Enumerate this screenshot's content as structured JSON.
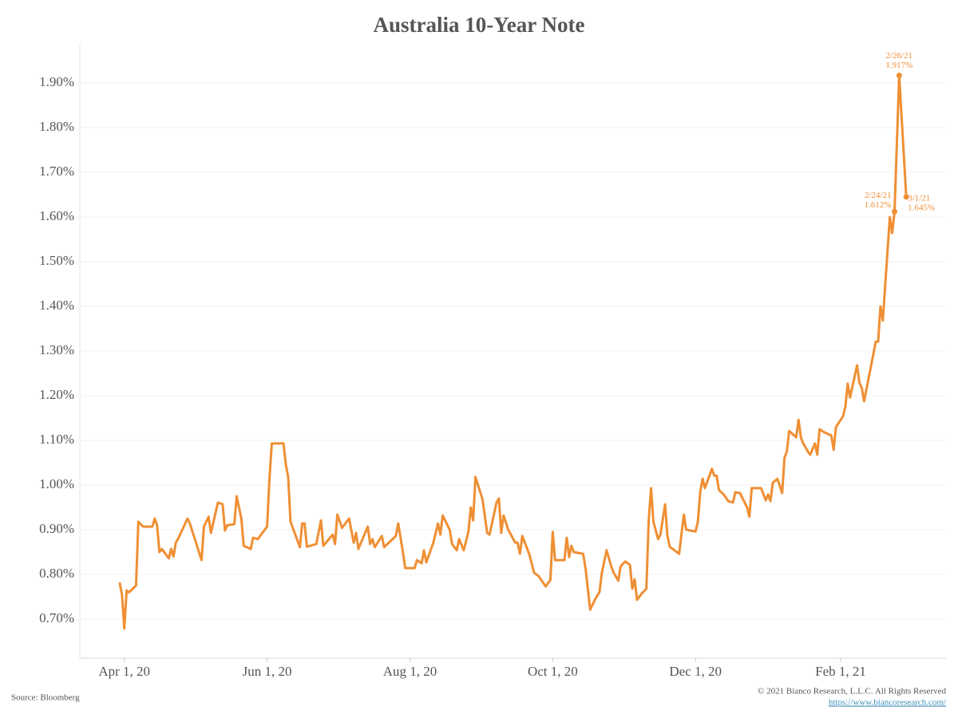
{
  "chart_data": {
    "type": "line",
    "title": "Australia 10-Year Note",
    "source": "Source: Bloomberg",
    "copyright": "© 2021 Bianco Research, L.L.C. All Rights Reserved",
    "url": "https://www.biancoresearch.com/",
    "grid": true,
    "xlim": [
      "2020-03-13",
      "2021-03-18"
    ],
    "xticks": [
      {
        "value": "2020-04-01",
        "label": "Apr 1, 20"
      },
      {
        "value": "2020-06-01",
        "label": "Jun 1, 20"
      },
      {
        "value": "2020-08-01",
        "label": "Aug 1, 20"
      },
      {
        "value": "2020-10-01",
        "label": "Oct 1, 20"
      },
      {
        "value": "2020-12-01",
        "label": "Dec 1, 20"
      },
      {
        "value": "2021-02-01",
        "label": "Feb 1, 21"
      }
    ],
    "ylim": [
      0.6125,
      1.9875
    ],
    "yticks": [
      {
        "value": 0.7,
        "label": "0.70%"
      },
      {
        "value": 0.8,
        "label": "0.80%"
      },
      {
        "value": 0.9,
        "label": "0.90%"
      },
      {
        "value": 1.0,
        "label": "1.00%"
      },
      {
        "value": 1.1,
        "label": "1.10%"
      },
      {
        "value": 1.2,
        "label": "1.20%"
      },
      {
        "value": 1.3,
        "label": "1.30%"
      },
      {
        "value": 1.4,
        "label": "1.40%"
      },
      {
        "value": 1.5,
        "label": "1.50%"
      },
      {
        "value": 1.6,
        "label": "1.60%"
      },
      {
        "value": 1.7,
        "label": "1.70%"
      },
      {
        "value": 1.8,
        "label": "1.80%"
      },
      {
        "value": 1.9,
        "label": "1.90%"
      }
    ],
    "x": [
      "2020-03-30",
      "2020-03-31",
      "2020-04-01",
      "2020-04-02",
      "2020-04-03",
      "2020-04-06",
      "2020-04-07",
      "2020-04-09",
      "2020-04-13",
      "2020-04-14",
      "2020-04-15",
      "2020-04-16",
      "2020-04-17",
      "2020-04-20",
      "2020-04-21",
      "2020-04-22",
      "2020-04-23",
      "2020-04-24",
      "2020-04-28",
      "2020-04-29",
      "2020-05-04",
      "2020-05-05",
      "2020-05-07",
      "2020-05-08",
      "2020-05-11",
      "2020-05-13",
      "2020-05-14",
      "2020-05-15",
      "2020-05-18",
      "2020-05-19",
      "2020-05-21",
      "2020-05-22",
      "2020-05-25",
      "2020-05-26",
      "2020-05-28",
      "2020-06-01",
      "2020-06-02",
      "2020-06-03",
      "2020-06-08",
      "2020-06-09",
      "2020-06-10",
      "2020-06-11",
      "2020-06-15",
      "2020-06-16",
      "2020-06-17",
      "2020-06-18",
      "2020-06-22",
      "2020-06-24",
      "2020-06-25",
      "2020-06-29",
      "2020-06-30",
      "2020-07-01",
      "2020-07-03",
      "2020-07-06",
      "2020-07-08",
      "2020-07-09",
      "2020-07-10",
      "2020-07-14",
      "2020-07-15",
      "2020-07-16",
      "2020-07-17",
      "2020-07-20",
      "2020-07-21",
      "2020-07-23",
      "2020-07-26",
      "2020-07-27",
      "2020-07-29",
      "2020-07-30",
      "2020-08-03",
      "2020-08-04",
      "2020-08-06",
      "2020-08-07",
      "2020-08-08",
      "2020-08-11",
      "2020-08-13",
      "2020-08-14",
      "2020-08-15",
      "2020-08-18",
      "2020-08-19",
      "2020-08-21",
      "2020-08-22",
      "2020-08-24",
      "2020-08-26",
      "2020-08-27",
      "2020-08-28",
      "2020-08-29",
      "2020-09-01",
      "2020-09-03",
      "2020-09-04",
      "2020-09-07",
      "2020-09-08",
      "2020-09-09",
      "2020-09-10",
      "2020-09-12",
      "2020-09-15",
      "2020-09-16",
      "2020-09-17",
      "2020-09-18",
      "2020-09-21",
      "2020-09-23",
      "2020-09-25",
      "2020-09-28",
      "2020-09-30",
      "2020-10-01",
      "2020-10-02",
      "2020-10-06",
      "2020-10-07",
      "2020-10-08",
      "2020-10-09",
      "2020-10-10",
      "2020-10-14",
      "2020-10-15",
      "2020-10-17",
      "2020-10-19",
      "2020-10-21",
      "2020-10-22",
      "2020-10-24",
      "2020-10-26",
      "2020-10-27",
      "2020-10-29",
      "2020-10-30",
      "2020-11-01",
      "2020-11-03",
      "2020-11-04",
      "2020-11-05",
      "2020-11-06",
      "2020-11-08",
      "2020-11-10",
      "2020-11-11",
      "2020-11-12",
      "2020-11-13",
      "2020-11-15",
      "2020-11-16",
      "2020-11-18",
      "2020-11-19",
      "2020-11-20",
      "2020-11-24",
      "2020-11-26",
      "2020-11-27",
      "2020-12-01",
      "2020-12-02",
      "2020-12-03",
      "2020-12-04",
      "2020-12-05",
      "2020-12-08",
      "2020-12-09",
      "2020-12-10",
      "2020-12-11",
      "2020-12-13",
      "2020-12-15",
      "2020-12-17",
      "2020-12-18",
      "2020-12-20",
      "2020-12-23",
      "2020-12-24",
      "2020-12-25",
      "2020-12-29",
      "2020-12-31",
      "2021-01-01",
      "2021-01-02",
      "2021-01-03",
      "2021-01-05",
      "2021-01-07",
      "2021-01-08",
      "2021-01-09",
      "2021-01-10",
      "2021-01-13",
      "2021-01-14",
      "2021-01-15",
      "2021-01-16",
      "2021-01-18",
      "2021-01-19",
      "2021-01-21",
      "2021-01-22",
      "2021-01-23",
      "2021-01-25",
      "2021-01-28",
      "2021-01-29",
      "2021-01-30",
      "2021-02-02",
      "2021-02-03",
      "2021-02-04",
      "2021-02-05",
      "2021-02-08",
      "2021-02-09",
      "2021-02-10",
      "2021-02-11",
      "2021-02-16",
      "2021-02-17",
      "2021-02-18",
      "2021-02-19",
      "2021-02-22",
      "2021-02-23",
      "2021-02-24",
      "2021-02-26",
      "2021-03-01"
    ],
    "series": [
      {
        "name": "Australia 10-Year Note",
        "color": "#ef8f34",
        "values": [
          0.782,
          0.755,
          0.679,
          0.764,
          0.76,
          0.775,
          0.918,
          0.907,
          0.907,
          0.925,
          0.91,
          0.85,
          0.857,
          0.836,
          0.857,
          0.84,
          0.871,
          0.88,
          0.925,
          0.914,
          0.832,
          0.907,
          0.929,
          0.893,
          0.961,
          0.957,
          0.898,
          0.91,
          0.9125,
          0.975,
          0.925,
          0.864,
          0.857,
          0.882,
          0.879,
          0.907,
          1.014,
          1.093,
          1.093,
          1.046,
          1.018,
          0.918,
          0.861,
          0.914,
          0.914,
          0.862,
          0.868,
          0.921,
          0.864,
          0.889,
          0.868,
          0.934,
          0.904,
          0.925,
          0.871,
          0.893,
          0.857,
          0.907,
          0.868,
          0.879,
          0.861,
          0.886,
          0.861,
          0.871,
          0.886,
          0.914,
          0.85,
          0.814,
          0.814,
          0.832,
          0.825,
          0.854,
          0.827,
          0.871,
          0.914,
          0.889,
          0.932,
          0.9,
          0.868,
          0.854,
          0.879,
          0.854,
          0.896,
          0.95,
          0.921,
          1.018,
          0.968,
          0.893,
          0.889,
          0.961,
          0.97,
          0.893,
          0.932,
          0.9,
          0.871,
          0.871,
          0.846,
          0.886,
          0.845,
          0.804,
          0.796,
          0.773,
          0.7875,
          0.895,
          0.832,
          0.832,
          0.882,
          0.839,
          0.864,
          0.85,
          0.846,
          0.814,
          0.721,
          0.743,
          0.761,
          0.804,
          0.854,
          0.818,
          0.804,
          0.786,
          0.818,
          0.829,
          0.821,
          0.768,
          0.789,
          0.743,
          0.757,
          0.768,
          0.921,
          0.993,
          0.918,
          0.879,
          0.889,
          0.957,
          0.886,
          0.862,
          0.846,
          0.934,
          0.9,
          0.896,
          0.918,
          0.984,
          1.014,
          0.993,
          1.036,
          1.021,
          1.021,
          0.989,
          0.979,
          0.964,
          0.961,
          0.984,
          0.982,
          0.95,
          0.929,
          0.993,
          0.993,
          0.966,
          0.979,
          0.964,
          1.005,
          1.014,
          0.982,
          1.061,
          1.075,
          1.121,
          1.107,
          1.146,
          1.107,
          1.093,
          1.075,
          1.068,
          1.093,
          1.068,
          1.125,
          1.118,
          1.111,
          1.079,
          1.13,
          1.154,
          1.175,
          1.227,
          1.196,
          1.268,
          1.229,
          1.218,
          1.1875,
          1.321,
          1.321,
          1.4,
          1.368,
          1.6,
          1.564,
          1.612,
          1.917,
          1.645
        ]
      }
    ],
    "annotations": [
      {
        "x": "2021-02-26",
        "y": 1.917,
        "date_label": "2/26/21",
        "value_label": "1.917%"
      },
      {
        "x": "2021-02-24",
        "y": 1.612,
        "date_label": "2/24/21",
        "value_label": "1.612%"
      },
      {
        "x": "2021-03-01",
        "y": 1.645,
        "date_label": "3/1/21",
        "value_label": "1.645%"
      }
    ]
  }
}
